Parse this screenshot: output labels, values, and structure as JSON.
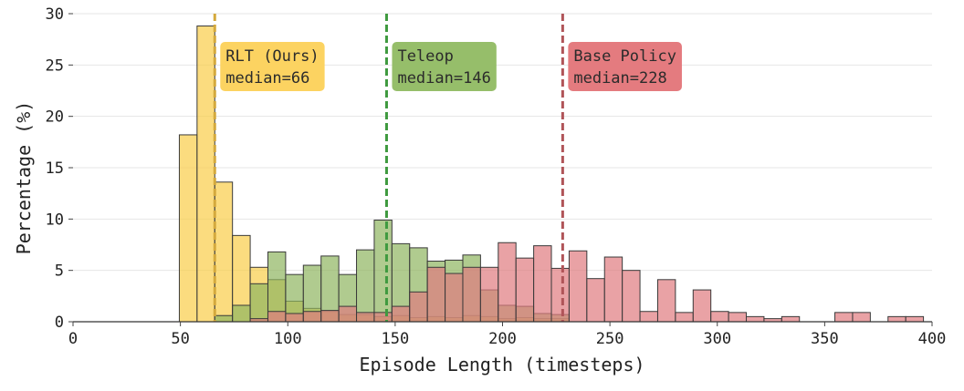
{
  "chart_data": {
    "type": "bar",
    "xlabel": "Episode Length (timesteps)",
    "ylabel": "Percentage (%)",
    "xlim": [
      0,
      400
    ],
    "ylim": [
      0,
      30
    ],
    "xticks": [
      0,
      50,
      100,
      150,
      200,
      250,
      300,
      350,
      400
    ],
    "yticks": [
      0,
      5,
      10,
      15,
      20,
      25,
      30
    ],
    "grid": "horizontal",
    "bin_width": 8.25,
    "series": [
      {
        "label": "RLT (Ours)",
        "color": "#f9cd49",
        "bin_starts": [
          49.5,
          57.75,
          66,
          74.25,
          82.5,
          90.75,
          99,
          107.25,
          115.5,
          123.75,
          132,
          140.25,
          148.5,
          156.75,
          165,
          173.25,
          181.5,
          189.75,
          198,
          206.25,
          214.5,
          222.75
        ],
        "values": [
          18.2,
          28.8,
          13.6,
          8.4,
          5.3,
          4.1,
          2.0,
          1.3,
          1.0,
          0.7,
          0.7,
          0.5,
          0.6,
          0.4,
          0.5,
          0.4,
          0.6,
          0.5,
          0.3,
          0.4,
          0.3,
          0.3
        ]
      },
      {
        "label": "Teleop",
        "color": "#8eb55f",
        "bin_starts": [
          66,
          74.25,
          82.5,
          90.75,
          99,
          107.25,
          115.5,
          123.75,
          132,
          140.25,
          148.5,
          156.75,
          165,
          173.25,
          181.5,
          189.75,
          198,
          206.25,
          214.5,
          222.75
        ],
        "values": [
          0.6,
          1.6,
          3.7,
          6.8,
          4.6,
          5.5,
          6.4,
          4.6,
          7.0,
          9.9,
          7.6,
          7.2,
          5.9,
          6.0,
          6.5,
          3.1,
          1.6,
          1.5,
          0.8,
          0.7
        ]
      },
      {
        "label": "Base Policy",
        "color": "#e07a7f",
        "bin_starts": [
          82.5,
          90.75,
          99,
          107.25,
          115.5,
          123.75,
          132,
          140.25,
          148.5,
          156.75,
          165,
          173.25,
          181.5,
          189.75,
          198,
          206.25,
          214.5,
          222.75,
          231,
          239.25,
          247.5,
          255.75,
          264,
          272.25,
          280.5,
          288.75,
          297,
          305.25,
          313.5,
          321.75,
          330,
          338.25,
          346.5,
          354.75,
          363,
          371.25,
          379.5,
          387.75
        ],
        "values": [
          0.3,
          1.0,
          0.8,
          1.0,
          1.1,
          1.5,
          0.9,
          0.9,
          1.5,
          2.9,
          5.3,
          4.7,
          5.3,
          5.3,
          7.7,
          6.2,
          7.4,
          5.2,
          6.9,
          4.2,
          6.3,
          5.0,
          1.0,
          4.1,
          0.9,
          3.1,
          1.0,
          0.9,
          0.5,
          0.3,
          0.5,
          0.0,
          0.0,
          0.9,
          0.9,
          0.0,
          0.5,
          0.5
        ]
      }
    ],
    "medians": [
      {
        "value": 66,
        "color": "#d4a93c",
        "label_line1": "RLT (Ours)",
        "label_line2": "median=66",
        "box_color": "#fcd361"
      },
      {
        "value": 146,
        "color": "#3f9a3f",
        "label_line1": "Teleop",
        "label_line2": "median=146",
        "box_color": "#96be6a"
      },
      {
        "value": 228,
        "color": "#b05458",
        "label_line1": "Base Policy",
        "label_line2": "median=228",
        "box_color": "#e47b7f"
      }
    ]
  }
}
